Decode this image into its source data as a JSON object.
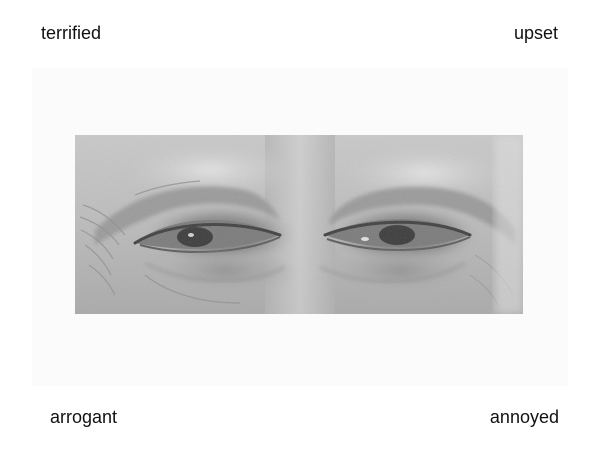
{
  "options": {
    "top_left": "terrified",
    "top_right": "upset",
    "bottom_left": "arrogant",
    "bottom_right": "annoyed"
  },
  "stimulus": {
    "image": "eyes-region-photo",
    "tone": "grayscale"
  }
}
